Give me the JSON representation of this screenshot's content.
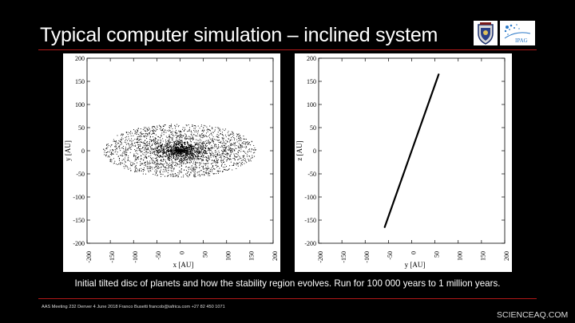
{
  "slide": {
    "title": "Typical computer simulation – inclined system",
    "caption": "Initial tilted disc of planets and how the stability region evolves. Run for 100 000 years to 1 million years.",
    "footer": "AAS Meeting 232   Denver   4 June 2018  Franco Busetti  francob@iafrica.com  +27 82 450 1071",
    "watermark": "SCIENCEAQ.COM",
    "logos": [
      {
        "name": "university-crest",
        "icon": "crest-icon"
      },
      {
        "name": "ipag-logo",
        "text": "IPAG",
        "icon": "ipag-icon"
      }
    ],
    "accent_color": "#b01818"
  },
  "chart_data": [
    {
      "type": "scatter",
      "xlabel": "x [AU]",
      "ylabel": "y [AU]",
      "xlim": [
        -200,
        200
      ],
      "ylim": [
        -200,
        200
      ],
      "xticks": [
        "-200",
        "-150",
        "-100",
        "-50",
        "0",
        "50",
        "100",
        "150",
        "200"
      ],
      "yticks": [
        "200",
        "150",
        "100",
        "50",
        "0",
        "-50",
        "-100",
        "-150",
        "-200"
      ],
      "disc": {
        "center": [
          0,
          0
        ],
        "semi_major": 165,
        "semi_minor": 58,
        "density": "concentrated toward center"
      },
      "point_color": "#000000"
    },
    {
      "type": "line",
      "xlabel": "y [AU]",
      "ylabel": "z [AU]",
      "xlim": [
        -200,
        200
      ],
      "ylim": [
        -200,
        200
      ],
      "xticks": [
        "-200",
        "-150",
        "-100",
        "-50",
        "0",
        "50",
        "100",
        "150",
        "200"
      ],
      "yticks": [
        "200",
        "150",
        "100",
        "50",
        "0",
        "-50",
        "-100",
        "-150",
        "-200"
      ],
      "x": [
        -58,
        58
      ],
      "y": [
        -165,
        165
      ],
      "line_color": "#000000"
    }
  ]
}
